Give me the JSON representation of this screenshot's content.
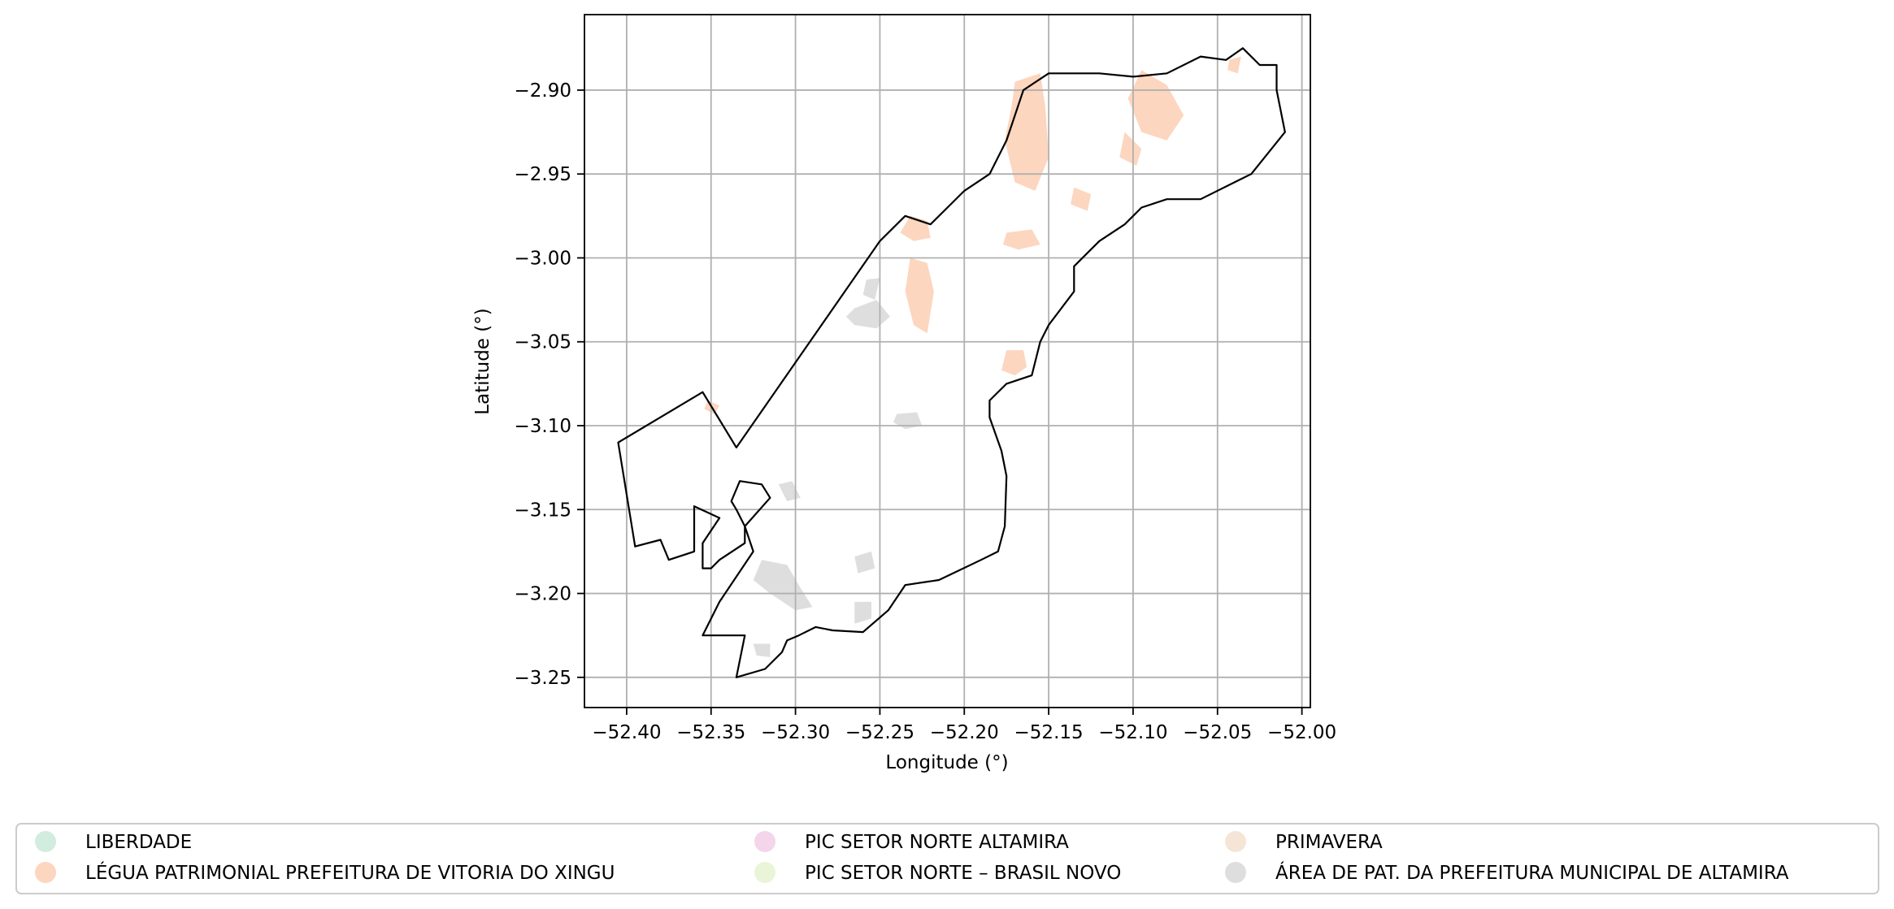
{
  "chart_data": {
    "type": "map",
    "xlabel": "Longitude (°)",
    "ylabel": "Latitude (°)",
    "xlim": [
      -52.425,
      -51.995
    ],
    "ylim": [
      -3.268,
      -2.855
    ],
    "grid": true,
    "x_ticks": [
      -52.4,
      -52.35,
      -52.3,
      -52.25,
      -52.2,
      -52.15,
      -52.1,
      -52.05,
      -52.0
    ],
    "x_tick_labels": [
      "−52.40",
      "−52.35",
      "−52.30",
      "−52.25",
      "−52.20",
      "−52.15",
      "−52.10",
      "−52.05",
      "−52.00"
    ],
    "y_ticks": [
      -2.9,
      -2.95,
      -3.0,
      -3.05,
      -3.1,
      -3.15,
      -3.2,
      -3.25
    ],
    "y_tick_labels": [
      "−2.90",
      "−2.95",
      "−3.00",
      "−3.05",
      "−3.10",
      "−3.15",
      "−3.20",
      "−3.25"
    ],
    "legend_placement": "bottom",
    "legend": [
      {
        "label": "LIBERDADE",
        "color": "#d2ecdf"
      },
      {
        "label": "LÉGUA PATRIMONIAL PREFEITURA DE VITORIA DO XINGU",
        "color": "#fcd6bf"
      },
      {
        "label": "PIC SETOR NORTE ALTAMIRA",
        "color": "#f4d5ea"
      },
      {
        "label": "PIC SETOR NORTE – BRASIL NOVO",
        "color": "#eaf5d8"
      },
      {
        "label": "PRIMAVERA",
        "color": "#f5e5d6"
      },
      {
        "label": "ÁREA DE PAT. DA PREFEITURA MUNICIPAL DE ALTAMIRA",
        "color": "#dedede"
      }
    ],
    "boundary": [
      [
        -52.405,
        -3.11
      ],
      [
        -52.355,
        -3.08
      ],
      [
        -52.335,
        -3.113
      ],
      [
        -52.25,
        -2.99
      ],
      [
        -52.235,
        -2.975
      ],
      [
        -52.22,
        -2.98
      ],
      [
        -52.2,
        -2.96
      ],
      [
        -52.185,
        -2.95
      ],
      [
        -52.175,
        -2.93
      ],
      [
        -52.165,
        -2.9
      ],
      [
        -52.15,
        -2.89
      ],
      [
        -52.12,
        -2.89
      ],
      [
        -52.1,
        -2.892
      ],
      [
        -52.08,
        -2.89
      ],
      [
        -52.06,
        -2.88
      ],
      [
        -52.045,
        -2.882
      ],
      [
        -52.035,
        -2.875
      ],
      [
        -52.025,
        -2.885
      ],
      [
        -52.015,
        -2.885
      ],
      [
        -52.015,
        -2.9
      ],
      [
        -52.01,
        -2.925
      ],
      [
        -52.03,
        -2.95
      ],
      [
        -52.04,
        -2.955
      ],
      [
        -52.06,
        -2.965
      ],
      [
        -52.08,
        -2.965
      ],
      [
        -52.095,
        -2.97
      ],
      [
        -52.105,
        -2.98
      ],
      [
        -52.12,
        -2.99
      ],
      [
        -52.135,
        -3.005
      ],
      [
        -52.135,
        -3.02
      ],
      [
        -52.15,
        -3.04
      ],
      [
        -52.155,
        -3.05
      ],
      [
        -52.16,
        -3.07
      ],
      [
        -52.175,
        -3.075
      ],
      [
        -52.185,
        -3.085
      ],
      [
        -52.185,
        -3.095
      ],
      [
        -52.178,
        -3.115
      ],
      [
        -52.175,
        -3.13
      ],
      [
        -52.176,
        -3.16
      ],
      [
        -52.18,
        -3.175
      ],
      [
        -52.19,
        -3.18
      ],
      [
        -52.215,
        -3.192
      ],
      [
        -52.235,
        -3.195
      ],
      [
        -52.245,
        -3.21
      ],
      [
        -52.26,
        -3.223
      ],
      [
        -52.278,
        -3.222
      ],
      [
        -52.288,
        -3.22
      ],
      [
        -52.298,
        -3.225
      ],
      [
        -52.305,
        -3.228
      ],
      [
        -52.308,
        -3.235
      ],
      [
        -52.318,
        -3.245
      ],
      [
        -52.335,
        -3.25
      ],
      [
        -52.33,
        -3.225
      ],
      [
        -52.355,
        -3.225
      ],
      [
        -52.345,
        -3.205
      ],
      [
        -52.335,
        -3.19
      ],
      [
        -52.325,
        -3.175
      ],
      [
        -52.33,
        -3.16
      ],
      [
        -52.335,
        -3.15
      ],
      [
        -52.338,
        -3.145
      ],
      [
        -52.333,
        -3.133
      ],
      [
        -52.32,
        -3.135
      ],
      [
        -52.315,
        -3.143
      ],
      [
        -52.33,
        -3.16
      ],
      [
        -52.33,
        -3.17
      ],
      [
        -52.345,
        -3.18
      ],
      [
        -52.35,
        -3.185
      ],
      [
        -52.355,
        -3.185
      ],
      [
        -52.355,
        -3.17
      ],
      [
        -52.345,
        -3.155
      ],
      [
        -52.36,
        -3.148
      ],
      [
        -52.36,
        -3.175
      ],
      [
        -52.375,
        -3.18
      ],
      [
        -52.38,
        -3.168
      ],
      [
        -52.395,
        -3.172
      ],
      [
        -52.405,
        -3.11
      ]
    ],
    "features": [
      {
        "category": "LÉGUA PATRIMONIAL PREFEITURA DE VITORIA DO XINGU",
        "polygon": [
          [
            -52.17,
            -2.895
          ],
          [
            -52.155,
            -2.89
          ],
          [
            -52.152,
            -2.91
          ],
          [
            -52.15,
            -2.94
          ],
          [
            -52.158,
            -2.96
          ],
          [
            -52.17,
            -2.955
          ],
          [
            -52.176,
            -2.93
          ],
          [
            -52.172,
            -2.91
          ]
        ]
      },
      {
        "category": "LÉGUA PATRIMONIAL PREFEITURA DE VITORIA DO XINGU",
        "polygon": [
          [
            -52.095,
            -2.888
          ],
          [
            -52.08,
            -2.897
          ],
          [
            -52.07,
            -2.915
          ],
          [
            -52.08,
            -2.93
          ],
          [
            -52.095,
            -2.925
          ],
          [
            -52.103,
            -2.905
          ]
        ]
      },
      {
        "category": "LÉGUA PATRIMONIAL PREFEITURA DE VITORIA DO XINGU",
        "polygon": [
          [
            -52.105,
            -2.925
          ],
          [
            -52.095,
            -2.935
          ],
          [
            -52.098,
            -2.945
          ],
          [
            -52.108,
            -2.94
          ]
        ]
      },
      {
        "category": "LÉGUA PATRIMONIAL PREFEITURA DE VITORIA DO XINGU",
        "polygon": [
          [
            -52.232,
            -2.975
          ],
          [
            -52.222,
            -2.978
          ],
          [
            -52.22,
            -2.988
          ],
          [
            -52.23,
            -2.99
          ],
          [
            -52.238,
            -2.985
          ]
        ]
      },
      {
        "category": "LÉGUA PATRIMONIAL PREFEITURA DE VITORIA DO XINGU",
        "polygon": [
          [
            -52.232,
            -3.0
          ],
          [
            -52.222,
            -3.003
          ],
          [
            -52.218,
            -3.02
          ],
          [
            -52.222,
            -3.045
          ],
          [
            -52.23,
            -3.04
          ],
          [
            -52.235,
            -3.02
          ]
        ]
      },
      {
        "category": "LÉGUA PATRIMONIAL PREFEITURA DE VITORIA DO XINGU",
        "polygon": [
          [
            -52.175,
            -2.985
          ],
          [
            -52.16,
            -2.983
          ],
          [
            -52.155,
            -2.992
          ],
          [
            -52.168,
            -2.995
          ],
          [
            -52.177,
            -2.992
          ]
        ]
      },
      {
        "category": "LÉGUA PATRIMONIAL PREFEITURA DE VITORIA DO XINGU",
        "polygon": [
          [
            -52.175,
            -3.055
          ],
          [
            -52.165,
            -3.055
          ],
          [
            -52.163,
            -3.065
          ],
          [
            -52.17,
            -3.07
          ],
          [
            -52.178,
            -3.067
          ]
        ]
      },
      {
        "category": "LÉGUA PATRIMONIAL PREFEITURA DE VITORIA DO XINGU",
        "polygon": [
          [
            -52.135,
            -2.958
          ],
          [
            -52.125,
            -2.962
          ],
          [
            -52.127,
            -2.972
          ],
          [
            -52.137,
            -2.968
          ]
        ]
      },
      {
        "category": "LÉGUA PATRIMONIAL PREFEITURA DE VITORIA DO XINGU",
        "polygon": [
          [
            -52.043,
            -2.882
          ],
          [
            -52.036,
            -2.88
          ],
          [
            -52.038,
            -2.89
          ],
          [
            -52.044,
            -2.888
          ]
        ]
      },
      {
        "category": "LÉGUA PATRIMONIAL PREFEITURA DE VITORIA DO XINGU",
        "polygon": [
          [
            -52.352,
            -3.085
          ],
          [
            -52.345,
            -3.088
          ],
          [
            -52.348,
            -3.093
          ],
          [
            -52.354,
            -3.09
          ]
        ]
      },
      {
        "category": "ÁREA DE PAT. DA PREFEITURA MUNICIPAL DE ALTAMIRA",
        "polygon": [
          [
            -52.265,
            -3.03
          ],
          [
            -52.252,
            -3.025
          ],
          [
            -52.244,
            -3.035
          ],
          [
            -52.252,
            -3.042
          ],
          [
            -52.265,
            -3.04
          ],
          [
            -52.27,
            -3.035
          ]
        ]
      },
      {
        "category": "ÁREA DE PAT. DA PREFEITURA MUNICIPAL DE ALTAMIRA",
        "polygon": [
          [
            -52.258,
            -3.013
          ],
          [
            -52.25,
            -3.012
          ],
          [
            -52.253,
            -3.025
          ],
          [
            -52.26,
            -3.022
          ]
        ]
      },
      {
        "category": "ÁREA DE PAT. DA PREFEITURA MUNICIPAL DE ALTAMIRA",
        "polygon": [
          [
            -52.24,
            -3.093
          ],
          [
            -52.228,
            -3.092
          ],
          [
            -52.225,
            -3.1
          ],
          [
            -52.235,
            -3.102
          ],
          [
            -52.242,
            -3.098
          ]
        ]
      },
      {
        "category": "ÁREA DE PAT. DA PREFEITURA MUNICIPAL DE ALTAMIRA",
        "polygon": [
          [
            -52.31,
            -3.135
          ],
          [
            -52.302,
            -3.133
          ],
          [
            -52.297,
            -3.143
          ],
          [
            -52.305,
            -3.145
          ]
        ]
      },
      {
        "category": "ÁREA DE PAT. DA PREFEITURA MUNICIPAL DE ALTAMIRA",
        "polygon": [
          [
            -52.32,
            -3.18
          ],
          [
            -52.305,
            -3.183
          ],
          [
            -52.298,
            -3.195
          ],
          [
            -52.29,
            -3.208
          ],
          [
            -52.3,
            -3.21
          ],
          [
            -52.315,
            -3.2
          ],
          [
            -52.325,
            -3.192
          ]
        ]
      },
      {
        "category": "ÁREA DE PAT. DA PREFEITURA MUNICIPAL DE ALTAMIRA",
        "polygon": [
          [
            -52.265,
            -3.178
          ],
          [
            -52.255,
            -3.175
          ],
          [
            -52.253,
            -3.185
          ],
          [
            -52.263,
            -3.188
          ]
        ]
      },
      {
        "category": "ÁREA DE PAT. DA PREFEITURA MUNICIPAL DE ALTAMIRA",
        "polygon": [
          [
            -52.265,
            -3.205
          ],
          [
            -52.255,
            -3.205
          ],
          [
            -52.255,
            -3.215
          ],
          [
            -52.265,
            -3.218
          ]
        ]
      },
      {
        "category": "ÁREA DE PAT. DA PREFEITURA MUNICIPAL DE ALTAMIRA",
        "polygon": [
          [
            -52.325,
            -3.23
          ],
          [
            -52.315,
            -3.23
          ],
          [
            -52.315,
            -3.238
          ],
          [
            -52.323,
            -3.237
          ]
        ]
      }
    ]
  }
}
